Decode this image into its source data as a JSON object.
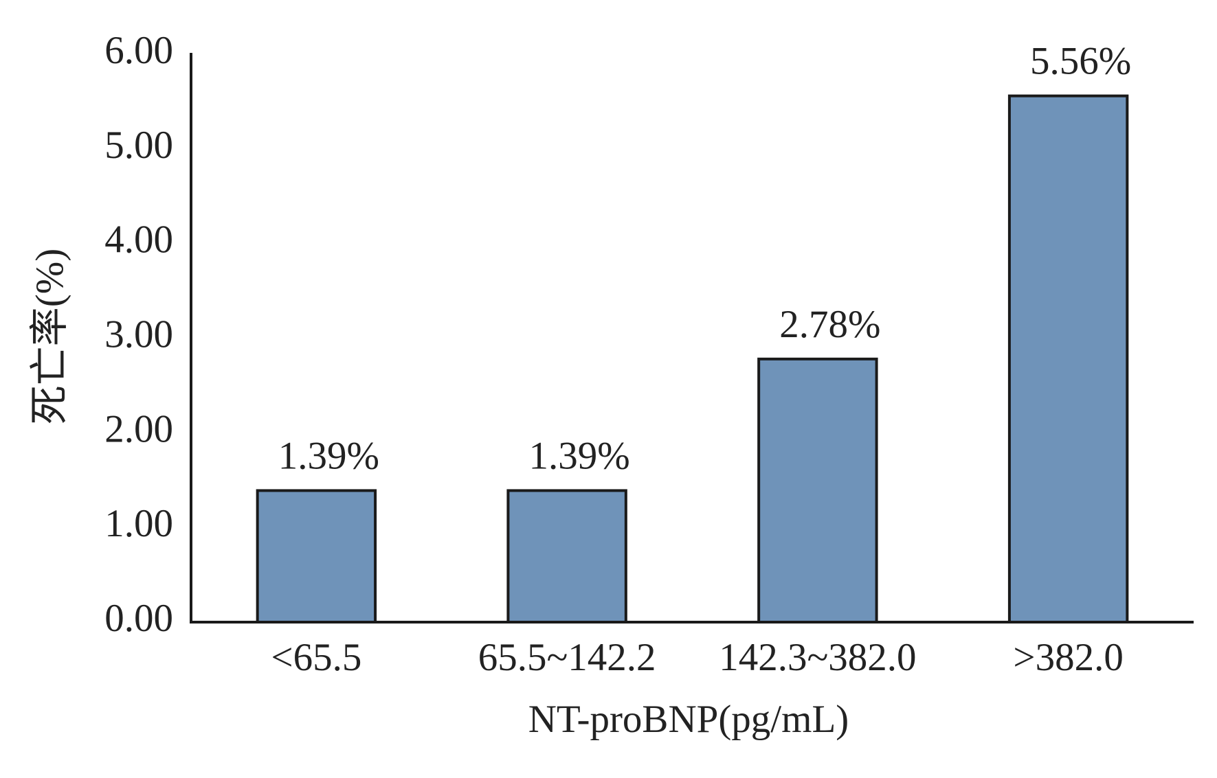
{
  "chart_data": {
    "type": "bar",
    "x_label": "NT-proBNP(pg/mL)",
    "y_label": "死亡率(%)",
    "categories": [
      "<65.5",
      "65.5~142.2",
      "142.3~382.0",
      ">382.0"
    ],
    "values": [
      1.39,
      1.39,
      2.78,
      5.56
    ],
    "value_labels": [
      "1.39%",
      "1.39%",
      "2.78%",
      "5.56%"
    ],
    "color": "#6f93b9",
    "ylim": [
      0,
      6
    ],
    "yticks": [
      {
        "value": 0,
        "label": "0.00"
      },
      {
        "value": 1,
        "label": "1.00"
      },
      {
        "value": 2,
        "label": "2.00"
      },
      {
        "value": 3,
        "label": "3.00"
      },
      {
        "value": 4,
        "label": "4.00"
      },
      {
        "value": 5,
        "label": "5.00"
      },
      {
        "value": 6,
        "label": "6.00"
      }
    ],
    "grid": false
  }
}
